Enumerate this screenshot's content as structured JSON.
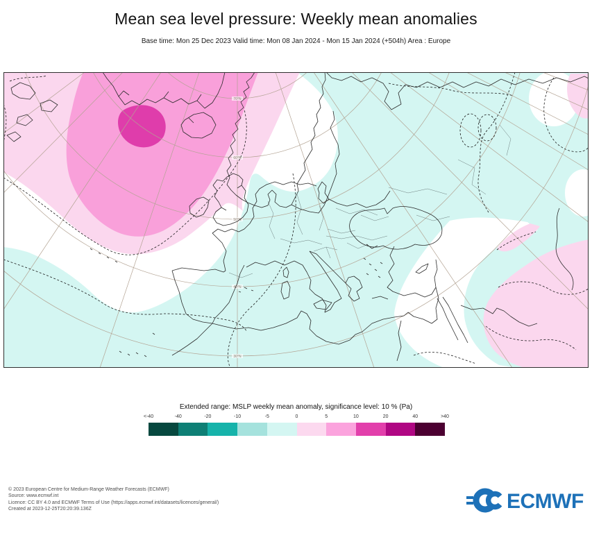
{
  "header": {
    "title": "Mean sea level pressure: Weekly mean anomalies",
    "subtitle": "Base time: Mon 25 Dec 2023 Valid time: Mon 08 Jan 2024 - Mon 15 Jan 2024 (+504h) Area : Europe"
  },
  "map": {
    "latitude_labels": [
      "70°N",
      "60°N",
      "50°N",
      "40°N",
      "30°N"
    ],
    "colors": {
      "anomaly_negative_light": "#d4f6f2",
      "anomaly_positive_light": "#fbd7ee",
      "anomaly_positive_medium": "#f9a0da",
      "anomaly_positive_strong": "#df3dab",
      "graticule": "#b3a393",
      "coastline": "#2b2b2b",
      "border_lines": "#6f7f7f"
    }
  },
  "legend": {
    "title": "Extended range: MSLP weekly mean anomaly, significance level: 10 % (Pa)",
    "ticks": [
      "<-40",
      "-40",
      "-20",
      "-10",
      "-5",
      "0",
      "5",
      "10",
      "20",
      "40",
      ">40"
    ],
    "colors": [
      "#07483f",
      "#0e7f75",
      "#16b3aa",
      "#a5e2dd",
      "#d4f6f2",
      "#fcd9ef",
      "#fba3dd",
      "#e23fab",
      "#b00783",
      "#4c0031"
    ]
  },
  "footer": {
    "lines": [
      "© 2023 European Centre for Medium-Range Weather Forecasts (ECMWF)",
      "Source: www.ecmwf.int",
      "Licence: CC BY 4.0 and ECMWF Terms of Use (https://apps.ecmwf.int/datasets/licences/general/)",
      "Created at 2023-12-25T20:20:39.136Z"
    ]
  },
  "logo": {
    "text": "ECMWF",
    "color": "#1d71b8"
  }
}
